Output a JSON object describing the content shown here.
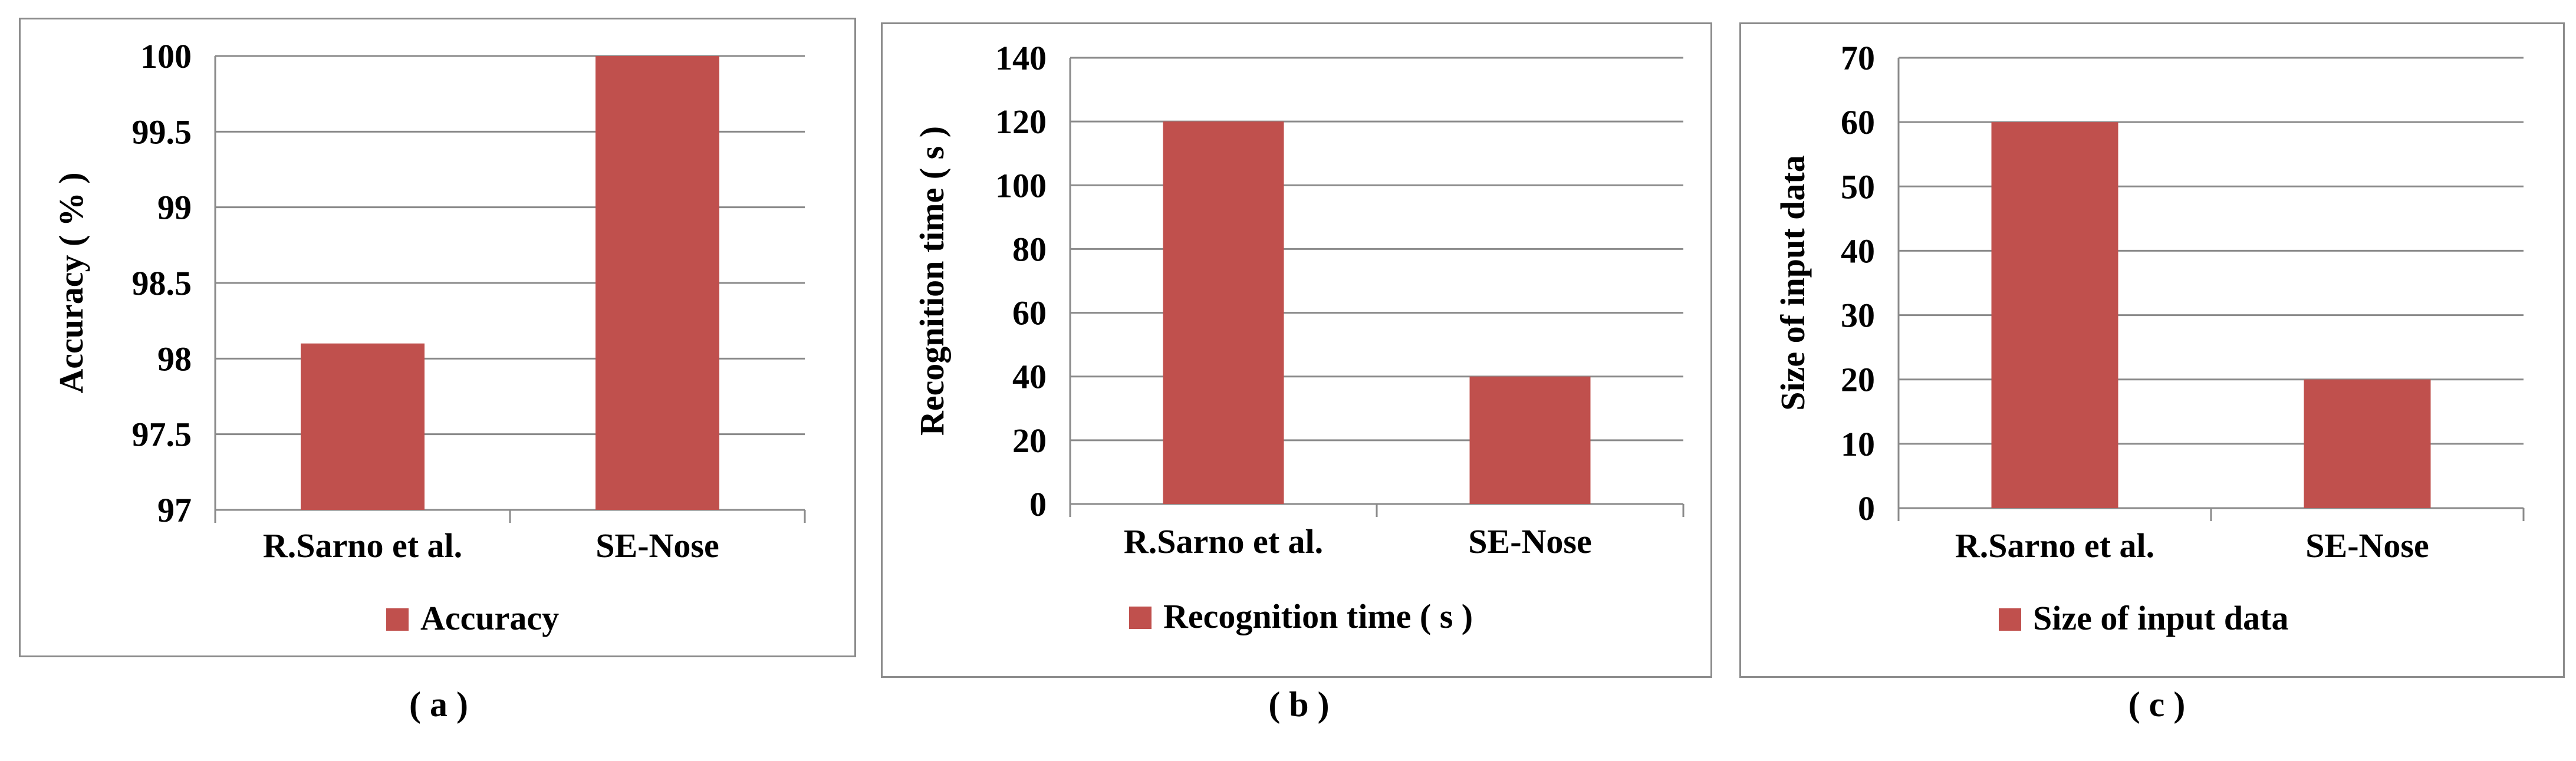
{
  "chart_data": [
    {
      "type": "bar",
      "panel_label": "( a )",
      "categories": [
        "R.Sarno et al.",
        "SE-Nose"
      ],
      "series": [
        {
          "name": "Accuracy",
          "values": [
            98.1,
            100
          ],
          "color": "#c0504d"
        }
      ],
      "ylabel": "Accuracy ( % )",
      "xlabel": "",
      "ylim": [
        97,
        100
      ],
      "ytick_step": 0.5,
      "yticks": [
        "97",
        "97.5",
        "98",
        "98.5",
        "99",
        "99.5",
        "100"
      ],
      "grid": true,
      "legend": "bottom-center"
    },
    {
      "type": "bar",
      "panel_label": "( b )",
      "categories": [
        "R.Sarno et al.",
        "SE-Nose"
      ],
      "series": [
        {
          "name": "Recognition time ( s )",
          "values": [
            120,
            40
          ],
          "color": "#c0504d"
        }
      ],
      "ylabel": "Recognition time ( s )",
      "xlabel": "",
      "ylim": [
        0,
        140
      ],
      "ytick_step": 20,
      "yticks": [
        "0",
        "20",
        "40",
        "60",
        "80",
        "100",
        "120",
        "140"
      ],
      "grid": true,
      "legend": "bottom-center"
    },
    {
      "type": "bar",
      "panel_label": "( c )",
      "categories": [
        "R.Sarno et al.",
        "SE-Nose"
      ],
      "series": [
        {
          "name": "Size of input data",
          "values": [
            60,
            20
          ],
          "color": "#c0504d"
        }
      ],
      "ylabel": "Size of input data",
      "xlabel": "",
      "ylim": [
        0,
        70
      ],
      "ytick_step": 10,
      "yticks": [
        "0",
        "10",
        "20",
        "30",
        "40",
        "50",
        "60",
        "70"
      ],
      "grid": true,
      "legend": "bottom-center"
    }
  ]
}
